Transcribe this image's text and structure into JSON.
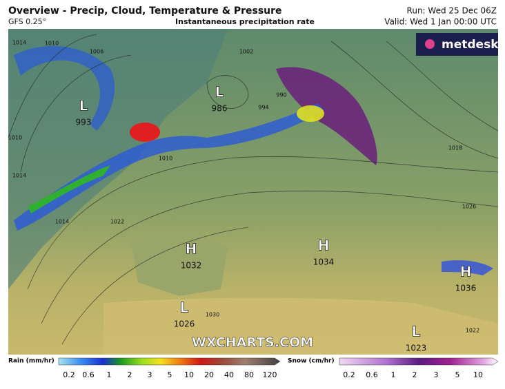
{
  "header": {
    "title": "Overview - Precip, Cloud, Temperature & Pressure",
    "model": "GFS 0.25°",
    "subtitle": "Instantaneous precipitation rate",
    "run": "Run: Wed 25 Dec 06Z",
    "valid": "Valid: Wed 1 Jan 00:00 UTC"
  },
  "logo": "metdesk",
  "watermark": "WXCHARTS.COM",
  "pressure_centers": [
    {
      "letter": "L",
      "value": "993"
    },
    {
      "letter": "L",
      "value": "986"
    },
    {
      "letter": "H",
      "value": "1032"
    },
    {
      "letter": "H",
      "value": "1034"
    },
    {
      "letter": "H",
      "value": "1036"
    },
    {
      "letter": "L",
      "value": "1026"
    },
    {
      "letter": "L",
      "value": "1023"
    }
  ],
  "isobar_labels": [
    "1014",
    "1010",
    "1006",
    "1002",
    "990",
    "994",
    "1010",
    "1014",
    "1022",
    "1018",
    "1026",
    "1030",
    "1022",
    "1014",
    "1010"
  ],
  "legend": {
    "rain": {
      "label": "Rain (mm/hr)",
      "ticks": [
        "0.2",
        "0.6",
        "1",
        "2",
        "3",
        "5",
        "10",
        "20",
        "40",
        "80",
        "120"
      ]
    },
    "snow": {
      "label": "Snow (cm/hr)",
      "ticks": [
        "0.2",
        "0.6",
        "1",
        "2",
        "3",
        "5",
        "10"
      ]
    }
  }
}
